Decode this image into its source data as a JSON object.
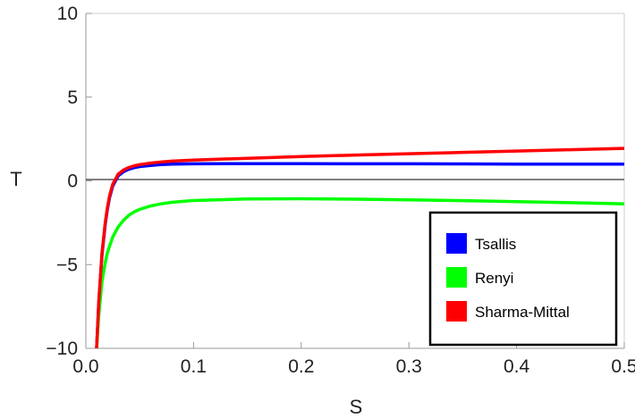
{
  "chart_data": {
    "type": "line",
    "title": "",
    "xlabel": "S",
    "ylabel": "T",
    "xlim": [
      0,
      0.5
    ],
    "ylim": [
      -10,
      10
    ],
    "x_ticks": [
      0.0,
      0.1,
      0.2,
      0.3,
      0.4,
      0.5
    ],
    "x_tick_labels": [
      "0.0",
      "0.1",
      "0.2",
      "0.3",
      "0.4",
      "0.5"
    ],
    "y_ticks": [
      -10,
      -5,
      0,
      5,
      10
    ],
    "y_tick_labels": [
      "−10",
      "−5",
      "0",
      "5",
      "10"
    ],
    "grid": false,
    "zero_line": true,
    "legend_position": "bottom-right",
    "series": [
      {
        "name": "Tsallis",
        "color": "#0000ff",
        "x": [
          0.01,
          0.012,
          0.015,
          0.018,
          0.02,
          0.022,
          0.025,
          0.03,
          0.035,
          0.04,
          0.045,
          0.05,
          0.06,
          0.07,
          0.08,
          0.1,
          0.15,
          0.2,
          0.25,
          0.3,
          0.35,
          0.4,
          0.45,
          0.5
        ],
        "y": [
          -10.0,
          -7.3,
          -4.4,
          -2.6,
          -1.7,
          -1.0,
          -0.3,
          0.3,
          0.55,
          0.7,
          0.79,
          0.85,
          0.92,
          0.97,
          1.0,
          1.02,
          1.03,
          1.03,
          1.02,
          1.02,
          1.01,
          1.0,
          1.0,
          1.0
        ]
      },
      {
        "name": "Renyi",
        "color": "#00ff00",
        "x": [
          0.01,
          0.012,
          0.015,
          0.018,
          0.02,
          0.022,
          0.025,
          0.03,
          0.035,
          0.04,
          0.045,
          0.05,
          0.06,
          0.07,
          0.08,
          0.1,
          0.15,
          0.2,
          0.25,
          0.3,
          0.35,
          0.4,
          0.45,
          0.5
        ],
        "y": [
          -10.0,
          -8.0,
          -6.0,
          -4.9,
          -4.3,
          -3.9,
          -3.35,
          -2.75,
          -2.35,
          -2.05,
          -1.85,
          -1.7,
          -1.5,
          -1.37,
          -1.28,
          -1.17,
          -1.08,
          -1.07,
          -1.09,
          -1.13,
          -1.18,
          -1.24,
          -1.3,
          -1.37
        ]
      },
      {
        "name": "Sharma-Mittal",
        "color": "#ff0000",
        "x": [
          0.01,
          0.012,
          0.015,
          0.018,
          0.02,
          0.022,
          0.025,
          0.03,
          0.035,
          0.04,
          0.045,
          0.05,
          0.06,
          0.07,
          0.08,
          0.1,
          0.15,
          0.2,
          0.25,
          0.3,
          0.35,
          0.4,
          0.45,
          0.5
        ],
        "y": [
          -10.0,
          -7.2,
          -4.3,
          -2.5,
          -1.6,
          -0.9,
          -0.2,
          0.4,
          0.65,
          0.8,
          0.9,
          0.97,
          1.06,
          1.13,
          1.18,
          1.24,
          1.35,
          1.45,
          1.54,
          1.62,
          1.7,
          1.78,
          1.86,
          1.94
        ]
      }
    ]
  }
}
